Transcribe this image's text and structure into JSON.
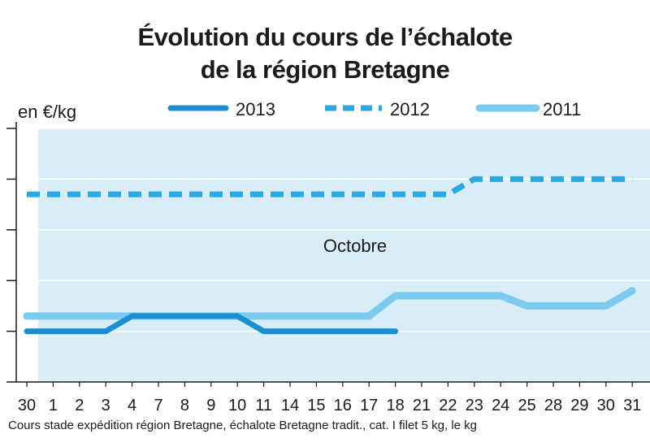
{
  "title_line1": "Évolution du cours de l’échalote",
  "title_line2": "de la région Bretagne",
  "footer": "Cours stade expédition région Bretagne, échalote Bretagne tradit., cat. I filet 5 kg, le kg",
  "colors": {
    "plot_bg": "#d9edf7",
    "s2013": "#1a8fd3",
    "s2012": "#2aa8e0",
    "s2011": "#7ccbef",
    "axis": "#1b1b1b"
  },
  "chart_data": {
    "type": "line",
    "ylabel": "en €/kg",
    "ylim": [
      0.5,
      1.0
    ],
    "y_tick_step": 0.1,
    "x_section_label": "Octobre",
    "categories": [
      "30",
      "1",
      "2",
      "3",
      "4",
      "7",
      "8",
      "9",
      "10",
      "11",
      "14",
      "15",
      "16",
      "17",
      "18",
      "21",
      "22",
      "23",
      "24",
      "25",
      "28",
      "29",
      "30",
      "31"
    ],
    "series": [
      {
        "name": "2013",
        "style": "solid",
        "values": [
          0.6,
          0.6,
          0.6,
          0.6,
          0.63,
          0.63,
          0.63,
          0.63,
          0.63,
          0.6,
          0.6,
          0.6,
          0.6,
          0.6,
          0.6,
          null,
          null,
          null,
          null,
          null,
          null,
          null,
          null,
          null
        ]
      },
      {
        "name": "2012",
        "style": "dashed",
        "values": [
          0.87,
          0.87,
          0.87,
          0.87,
          0.87,
          0.87,
          0.87,
          0.87,
          0.87,
          0.87,
          0.87,
          0.87,
          0.87,
          0.87,
          0.87,
          0.87,
          0.87,
          0.9,
          0.9,
          0.9,
          0.9,
          0.9,
          0.9,
          0.9
        ]
      },
      {
        "name": "2011",
        "style": "solid-light",
        "values": [
          0.63,
          0.63,
          0.63,
          0.63,
          0.63,
          0.63,
          0.63,
          0.63,
          0.63,
          0.63,
          0.63,
          0.63,
          0.63,
          0.63,
          0.67,
          0.67,
          0.67,
          0.67,
          0.67,
          0.65,
          0.65,
          0.65,
          0.65,
          0.68
        ]
      }
    ],
    "legend_placement": "top"
  }
}
